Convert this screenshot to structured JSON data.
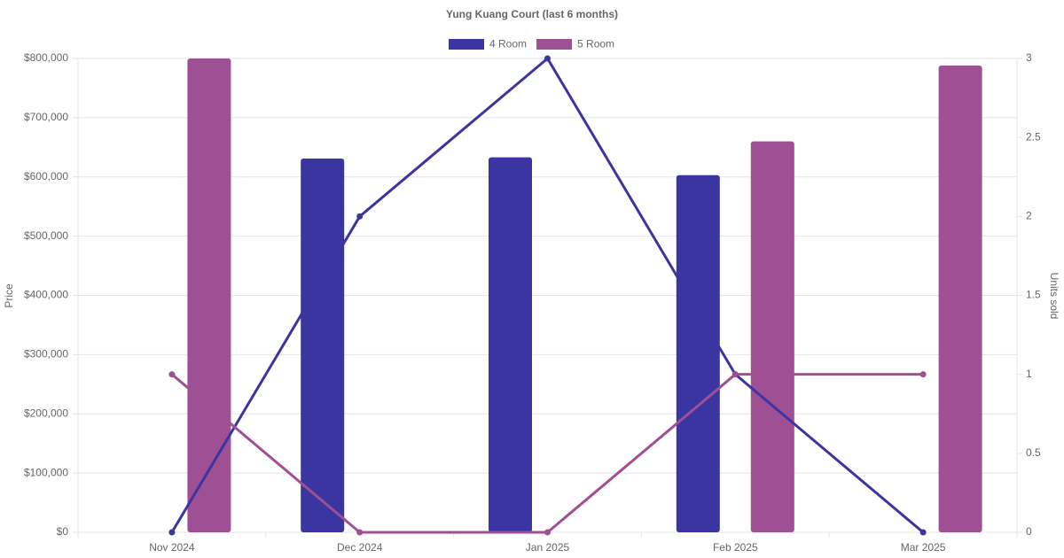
{
  "chart_data": {
    "type": "combo",
    "title": "Yung Kuang Court (last 6 months)",
    "y_label": "Price",
    "y2_label": "Units sold",
    "categories": [
      "Nov 2024",
      "Dec 2024",
      "Jan 2025",
      "Feb 2025",
      "Mar 2025"
    ],
    "series": [
      {
        "name": "4 Room",
        "color": "#3a35a0",
        "values": [
          null,
          631000,
          633000,
          603000,
          null
        ],
        "y2_values": [
          0,
          2,
          3,
          1,
          0
        ]
      },
      {
        "name": "5 Room",
        "color": "#9f4f93",
        "values": [
          800000,
          null,
          null,
          660000,
          788000
        ],
        "y2_values": [
          1,
          0,
          0,
          1,
          1
        ]
      }
    ],
    "ylim": [
      0,
      800000
    ],
    "yticks": [
      {
        "value": 0,
        "label": "$0"
      },
      {
        "value": 100000,
        "label": "$100,000"
      },
      {
        "value": 200000,
        "label": "$200,000"
      },
      {
        "value": 300000,
        "label": "$300,000"
      },
      {
        "value": 400000,
        "label": "$400,000"
      },
      {
        "value": 500000,
        "label": "$500,000"
      },
      {
        "value": 600000,
        "label": "$600,000"
      },
      {
        "value": 700000,
        "label": "$700,000"
      },
      {
        "value": 800000,
        "label": "$800,000"
      }
    ],
    "y2lim": [
      0,
      3
    ],
    "y2ticks": [
      0,
      0.5,
      1,
      1.5,
      2,
      2.5,
      3
    ],
    "grid": true
  }
}
